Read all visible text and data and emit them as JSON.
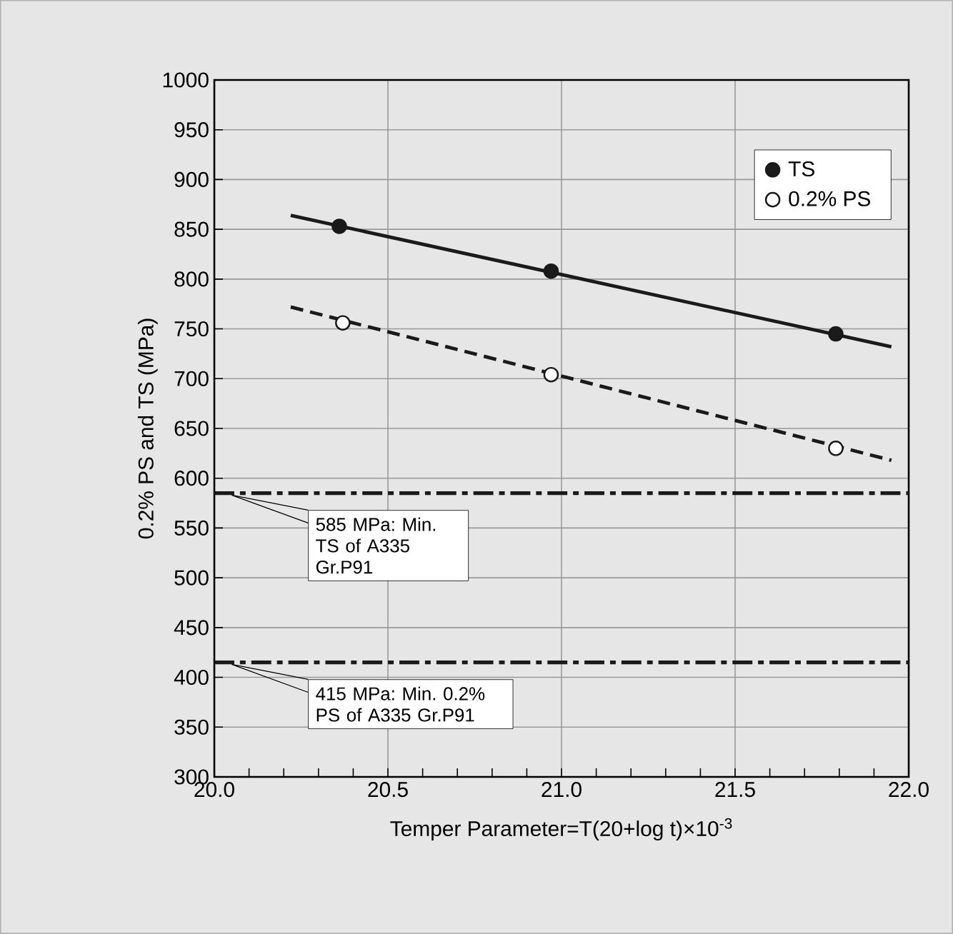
{
  "chart_data": {
    "type": "scatter",
    "xlabel": "Temper Parameter=T(20+log t)×10$^{-3}$",
    "ylabel": "0.2% PS and TS (MPa)",
    "xlim": [
      20.0,
      22.0
    ],
    "xticks": [
      {
        "value": 20.0,
        "label": "20.0"
      },
      {
        "value": 20.5,
        "label": "20.5"
      },
      {
        "value": 21.0,
        "label": "21.0"
      },
      {
        "value": 21.5,
        "label": "21.5"
      },
      {
        "value": 22.0,
        "label": "22.0"
      }
    ],
    "ylim": [
      300,
      1000
    ],
    "yticks": [
      300,
      350,
      400,
      450,
      500,
      550,
      600,
      650,
      700,
      750,
      800,
      850,
      900,
      950,
      1000
    ],
    "grid": true,
    "legend": "top right",
    "series": [
      {
        "name": "TS",
        "marker": "circle",
        "color": "#1a1a1a",
        "x": [
          20.36,
          20.97,
          21.79
        ],
        "values": [
          853,
          808,
          745
        ]
      },
      {
        "name": "0.2% PS",
        "marker": "circle",
        "color": "#ffffff",
        "x": [
          20.37,
          20.97,
          21.79
        ],
        "values": [
          756,
          704,
          630
        ]
      },
      {
        "type": "line",
        "marker": "none",
        "line_style": "solid",
        "color": "#1a1a1a",
        "x": [
          20.22,
          21.95
        ],
        "values": [
          864,
          732
        ]
      },
      {
        "type": "line",
        "marker": "none",
        "line_style": "dashed",
        "color": "#1a1a1a",
        "x": [
          20.22,
          21.95
        ],
        "values": [
          772,
          618
        ]
      }
    ],
    "ref_lines": [
      {
        "axis": "y",
        "value": 585,
        "label": "585 MPa: Min. TS of A335 Gr.P91",
        "color": "#1a1a1a",
        "line_style": "dashdot"
      },
      {
        "axis": "y",
        "value": 415,
        "label": "415 MPa: Min. 0.2% PS of A335 Gr.P91",
        "color": "#1a1a1a",
        "line_style": "dashdot"
      }
    ]
  }
}
